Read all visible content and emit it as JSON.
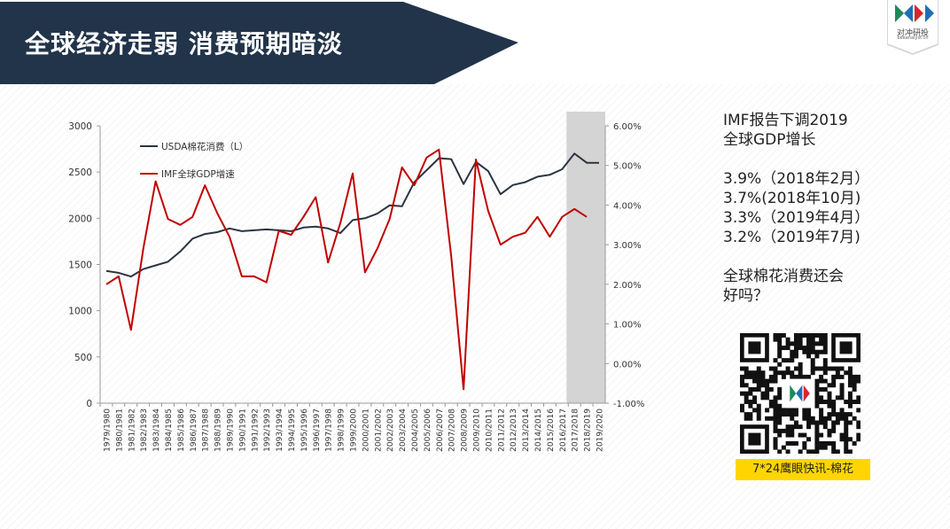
{
  "header": {
    "title": "全球经济走弱  消费预期暗淡",
    "logo_text": "对冲研投",
    "logo_sub": "beeanalyst.cn"
  },
  "side": {
    "lines": [
      "IMF报告下调2019",
      "全球GDP增长",
      "",
      "3.9%（2018年2月）",
      "3.7%(2018年10月)",
      "3.3%（2019年4月）",
      "3.2%（2019年7月)",
      "",
      "全球棉花消费还会",
      "好吗？"
    ],
    "qr_caption": "7*24鹰眼快讯-棉花"
  },
  "colors": {
    "banner": "#22344a",
    "consumption_line": "#2b3441",
    "gdp_line": "#c00000",
    "highlight": "#d4d4d4",
    "caption_bg": "#ffd500"
  },
  "chart_data": {
    "type": "line",
    "x": [
      "1979/1980",
      "1980/1981",
      "1981/1982",
      "1982/1983",
      "1983/1984",
      "1984/1985",
      "1985/1986",
      "1986/1987",
      "1987/1988",
      "1988/1989",
      "1989/1990",
      "1990/1991",
      "1991/1992",
      "1992/1993",
      "1993/1994",
      "1994/1995",
      "1995/1996",
      "1996/1997",
      "1997/1998",
      "1998/1999",
      "1999/2000",
      "2000/2001",
      "2001/2002",
      "2002/2003",
      "2003/2004",
      "2004/2005",
      "2005/2006",
      "2006/2007",
      "2007/2008",
      "2008/2009",
      "2009/2010",
      "2010/2011",
      "2011/2012",
      "2012/2013",
      "2013/2014",
      "2014/2015",
      "2015/2016",
      "2016/2017",
      "2017/2018",
      "2018/2019",
      "2019/2020"
    ],
    "series": [
      {
        "name": "USDA棉花消费（L）",
        "axis": "left",
        "values": [
          1430,
          1410,
          1370,
          1450,
          1490,
          1530,
          1640,
          1780,
          1830,
          1850,
          1890,
          1860,
          1870,
          1880,
          1870,
          1860,
          1900,
          1910,
          1890,
          1840,
          1980,
          2000,
          2050,
          2140,
          2130,
          2390,
          2520,
          2650,
          2640,
          2370,
          2610,
          2510,
          2260,
          2360,
          2390,
          2450,
          2470,
          2530,
          2700,
          2600,
          2600
        ]
      },
      {
        "name": "IMF全球GDP增速",
        "axis": "right",
        "values": [
          2.0,
          2.2,
          0.85,
          2.9,
          4.6,
          3.65,
          3.5,
          3.7,
          4.5,
          3.8,
          3.2,
          2.2,
          2.2,
          2.05,
          3.35,
          3.25,
          3.7,
          4.2,
          2.55,
          3.55,
          4.8,
          2.3,
          2.9,
          3.65,
          4.95,
          4.5,
          5.2,
          5.4,
          2.7,
          -0.65,
          5.15,
          3.85,
          3.0,
          3.2,
          3.3,
          3.7,
          3.2,
          3.7,
          3.9,
          3.7,
          null
        ]
      }
    ],
    "y_left": {
      "min": 0,
      "max": 3000,
      "ticks": [
        0,
        500,
        1000,
        1500,
        2000,
        2500,
        3000
      ]
    },
    "y_right": {
      "min": -1,
      "max": 6,
      "ticks": [
        "-1.00%",
        "0.00%",
        "1.00%",
        "2.00%",
        "3.00%",
        "4.00%",
        "5.00%",
        "6.00%"
      ]
    },
    "highlight_range": [
      "2017/2018",
      "2019/2020"
    ],
    "legend_position": "top-left"
  }
}
